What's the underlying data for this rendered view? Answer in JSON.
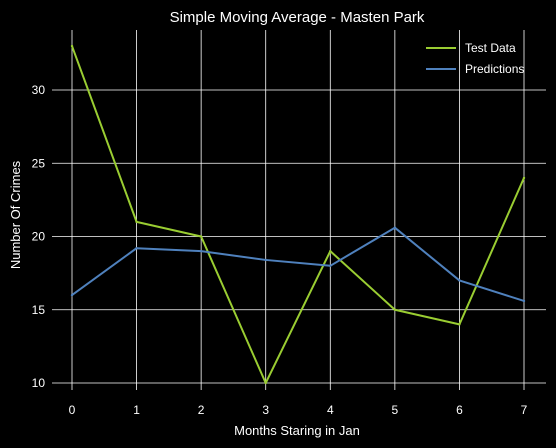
{
  "chart_data": {
    "type": "line",
    "title": "Simple Moving Average - Masten Park",
    "xlabel": "Months Staring in Jan",
    "ylabel": "Number Of Crimes",
    "x": [
      0,
      1,
      2,
      3,
      4,
      5,
      6,
      7
    ],
    "xticks": [
      "0",
      "1",
      "2",
      "3",
      "4",
      "5",
      "6",
      "7"
    ],
    "yticks": [
      "10",
      "15",
      "20",
      "25",
      "30"
    ],
    "xlim": [
      0,
      7
    ],
    "ylim": [
      10,
      33
    ],
    "grid": true,
    "legend_position": "top-right",
    "background": "#000000",
    "series": [
      {
        "name": "Test Data",
        "color": "#9acd32",
        "values": [
          33,
          21,
          20,
          10,
          19,
          15,
          14,
          24
        ]
      },
      {
        "name": "Predictions",
        "color": "#4f81bd",
        "values": [
          16,
          19.2,
          19,
          18.4,
          18,
          20.6,
          17,
          15.6
        ]
      }
    ]
  }
}
